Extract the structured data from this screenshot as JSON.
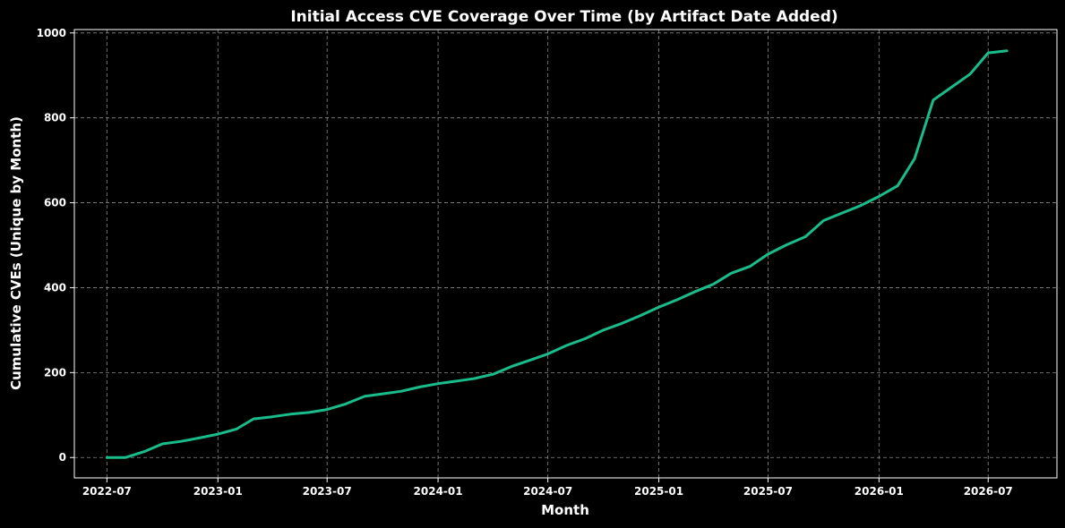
{
  "chart_data": {
    "type": "line",
    "title": "Initial Access CVE Coverage Over Time (by Artifact Date Added)",
    "xlabel": "Month",
    "ylabel": "Cumulative CVEs (Unique by Month)",
    "x": [
      "2022-07",
      "2022-08",
      "2022-09",
      "2022-10",
      "2022-11",
      "2022-12",
      "2023-01",
      "2023-02",
      "2023-03",
      "2023-04",
      "2023-05",
      "2023-06",
      "2023-07",
      "2023-08",
      "2023-09",
      "2023-10",
      "2023-11",
      "2023-12",
      "2024-01",
      "2024-02",
      "2024-03",
      "2024-04",
      "2024-05",
      "2024-06",
      "2024-07",
      "2024-08",
      "2024-09",
      "2024-10",
      "2024-11",
      "2024-12",
      "2025-01",
      "2025-02",
      "2025-03",
      "2025-04",
      "2025-05",
      "2025-06",
      "2025-07",
      "2025-08",
      "2025-09",
      "2025-10",
      "2025-11",
      "2025-12",
      "2026-01",
      "2026-02",
      "2026-03",
      "2026-04",
      "2026-05",
      "2026-06",
      "2026-07",
      "2026-08"
    ],
    "series": [
      {
        "color": "#1abc8c",
        "values": [
          0,
          0,
          14,
          32,
          38,
          46,
          55,
          67,
          91,
          96,
          102,
          106,
          113,
          126,
          144,
          150,
          156,
          166,
          174,
          180,
          186,
          196,
          214,
          229,
          244,
          264,
          280,
          300,
          316,
          334,
          354,
          372,
          390,
          408,
          434,
          450,
          479,
          501,
          520,
          558,
          576,
          593,
          615,
          640,
          704,
          842,
          872,
          903,
          953,
          958
        ]
      }
    ],
    "x_ticks": [
      "2022-07",
      "2023-01",
      "2023-07",
      "2024-01",
      "2024-07",
      "2025-01",
      "2025-07",
      "2026-01",
      "2026-07"
    ],
    "y_ticks": [
      0,
      200,
      400,
      600,
      800,
      1000
    ],
    "xlim": [
      "2022-05-08",
      "2026-10-23"
    ],
    "ylim": [
      -48,
      1008
    ],
    "grid": true,
    "background": "#000000",
    "text_color": "#ffffff",
    "grid_color": "#8a8a8a"
  }
}
